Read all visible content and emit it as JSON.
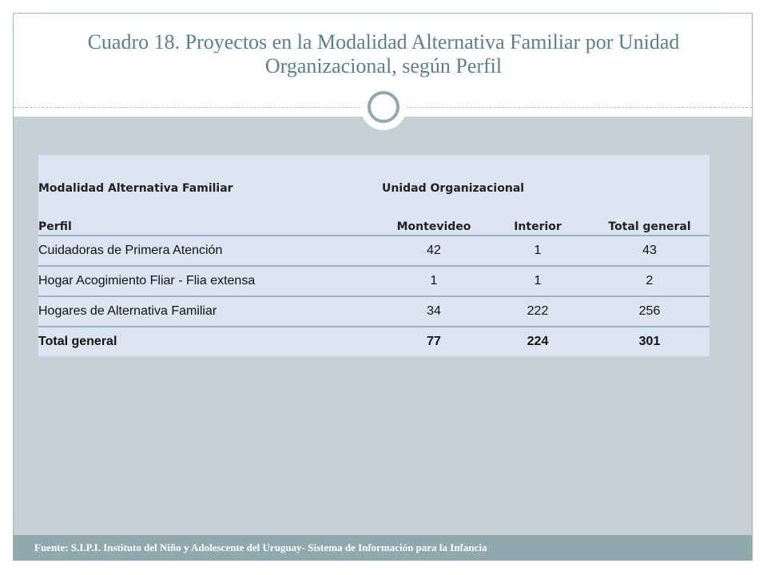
{
  "slide": {
    "title": "Cuadro 18. Proyectos en la Modalidad Alternativa Familiar  por Unidad Organizacional, según Perfil",
    "footer": "Fuente: S.I.P.I. Instituto del Niño y Adolescente del Uruguay- Sistema de Información para la Infancia"
  },
  "table": {
    "header_row1": [
      "Modalidad Alternativa Familiar",
      "Unidad Organizacional"
    ],
    "header_row2": [
      "Perfil",
      "Montevideo",
      "Interior",
      "Total general"
    ],
    "rows": [
      {
        "perfil": "Cuidadoras de Primera Atención",
        "montevideo": "42",
        "interior": "1",
        "total": "43"
      },
      {
        "perfil": "Hogar Acogimiento Fliar - Flia extensa",
        "montevideo": "1",
        "interior": "1",
        "total": "2"
      },
      {
        "perfil": "Hogares de Alternativa Familiar",
        "montevideo": "34",
        "interior": "222",
        "total": "256"
      }
    ],
    "total_row": {
      "perfil": "Total general",
      "montevideo": "77",
      "interior": "224",
      "total": "301"
    }
  },
  "colors": {
    "title": "#5a7f8c",
    "content_bg": "#c6d1d6",
    "table_bg": "#dbe5f1",
    "footer_bg": "#8fa9ae"
  }
}
